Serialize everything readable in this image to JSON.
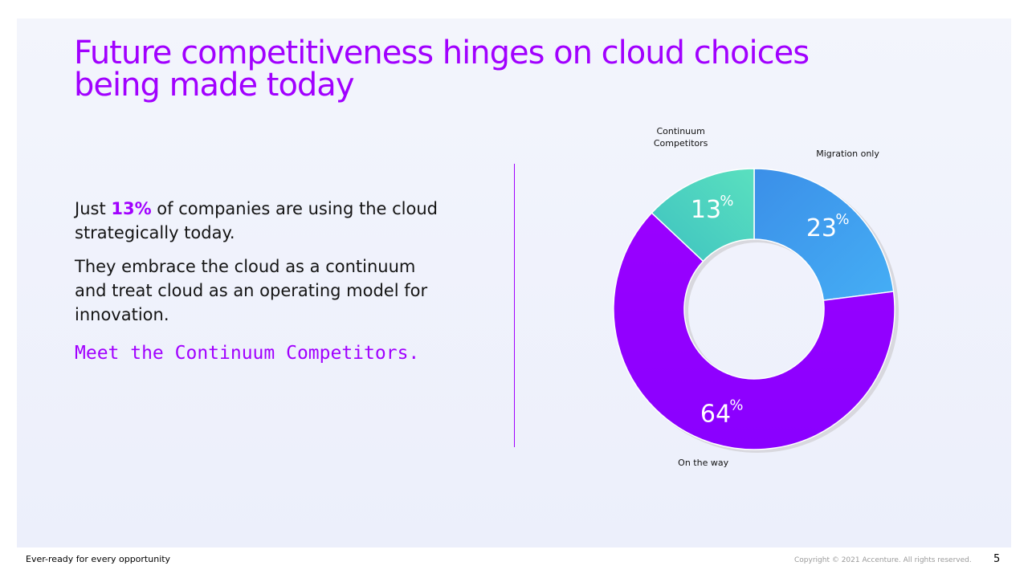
{
  "slide": {
    "title": "Future competitiveness hinges on cloud choices being made today",
    "body": {
      "p1_before": "Just ",
      "p1_highlight": "13%",
      "p1_after": " of companies are using the cloud strategically today.",
      "p2": "They embrace the cloud as a continuum and treat cloud as an operating model for innovation.",
      "cta": "Meet the Continuum Competitors."
    }
  },
  "chart_data": {
    "type": "pie",
    "donut": true,
    "categories": [
      "Migration only",
      "On the way",
      "Continuum Competitors"
    ],
    "values": [
      23,
      64,
      13
    ],
    "unit": "%",
    "colors": [
      "#3a9bef",
      "#a100ff",
      "#4fd8bd"
    ],
    "label_lines": [
      [
        "Migration only"
      ],
      [
        "On the way"
      ],
      [
        "Continuum",
        "Competitors"
      ]
    ]
  },
  "footer": {
    "tagline": "Ever-ready for every opportunity",
    "copyright": "Copyright © 2021 Accenture. All rights reserved.",
    "page_number": "5"
  }
}
